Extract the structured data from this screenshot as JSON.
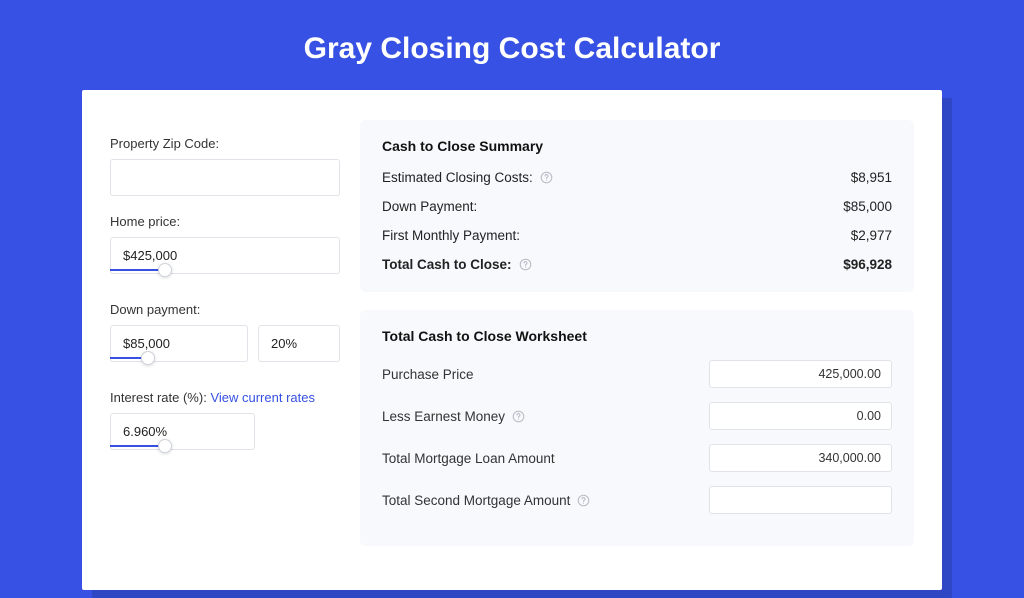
{
  "colors": {
    "page_bg": "#3651e3",
    "card_bg": "#ffffff",
    "card_shadow": "#2f47c4",
    "panel_bg": "#f7f9fc",
    "border": "#e1e3e8",
    "text": "#222222",
    "link": "#3651e3",
    "slider": "#3651e3",
    "help_icon": "#b8bcc5"
  },
  "title": "Gray Closing Cost Calculator",
  "inputs": {
    "zip": {
      "label": "Property Zip Code:",
      "value": ""
    },
    "home_price": {
      "label": "Home price:",
      "value": "$425,000",
      "slider_pct": 24
    },
    "down_payment": {
      "label": "Down payment:",
      "value": "$85,000",
      "pct_value": "20%",
      "slider_pct": 26
    },
    "interest_rate": {
      "label": "Interest rate (%):",
      "link_text": "View current rates",
      "value": "6.960%",
      "slider_pct": 38
    }
  },
  "summary": {
    "title": "Cash to Close Summary",
    "rows": [
      {
        "label": "Estimated Closing Costs:",
        "value": "$8,951",
        "help": true
      },
      {
        "label": "Down Payment:",
        "value": "$85,000",
        "help": false
      },
      {
        "label": "First Monthly Payment:",
        "value": "$2,977",
        "help": false
      }
    ],
    "total": {
      "label": "Total Cash to Close:",
      "value": "$96,928",
      "help": true
    }
  },
  "worksheet": {
    "title": "Total Cash to Close Worksheet",
    "rows": [
      {
        "label": "Purchase Price",
        "value": "425,000.00",
        "help": false
      },
      {
        "label": "Less Earnest Money",
        "value": "0.00",
        "help": true
      },
      {
        "label": "Total Mortgage Loan Amount",
        "value": "340,000.00",
        "help": false
      },
      {
        "label": "Total Second Mortgage Amount",
        "value": "",
        "help": true
      }
    ]
  }
}
